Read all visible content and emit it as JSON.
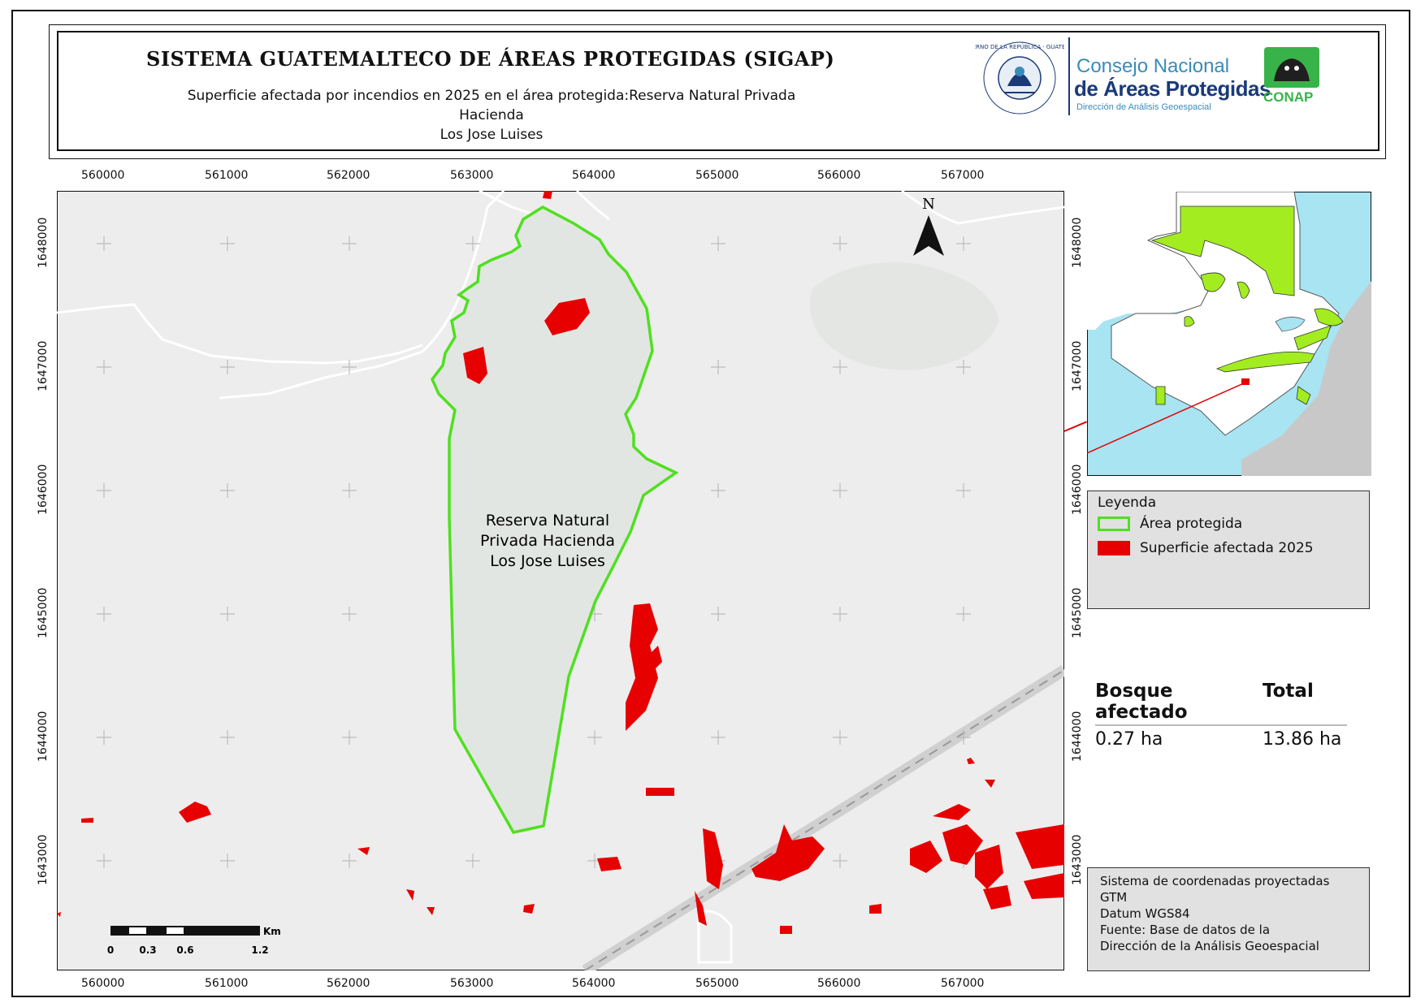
{
  "header": {
    "title": "SISTEMA GUATEMALTECO DE ÁREAS PROTEGIDAS  (SIGAP)",
    "subtitle_line1": "Superficie afectada por incendios en 2025 en el área protegida:Reserva Natural Privada Hacienda",
    "subtitle_line2": "Los Jose Luises",
    "gov_seal_text": "GOBIERNO DE LA REPÚBLICA · GUATEMALA",
    "conap_line1": "Consejo Nacional",
    "conap_line2": "de Áreas Protegidas",
    "conap_line3": "Dirección de Análisis Geoespacial",
    "conap_logo_label": "CONAP"
  },
  "map": {
    "protected_area_label_line1": "Reserva Natural",
    "protected_area_label_line2": "Privada Hacienda",
    "protected_area_label_line3": "Los Jose Luises",
    "north_label": "N",
    "x_ticks": [
      "560000",
      "561000",
      "562000",
      "563000",
      "564000",
      "565000",
      "566000",
      "567000"
    ],
    "y_ticks": [
      "1648000",
      "1647000",
      "1646000",
      "1645000",
      "1644000",
      "1643000"
    ],
    "scalebar": {
      "unit": "Km",
      "labels": [
        "0",
        "0.3",
        "0.6",
        "1.2"
      ]
    },
    "colors": {
      "background": "#ededed",
      "protected_area_outline": "#4fe020",
      "protected_area_fill": "#e2e6e2",
      "fire": "#e60000",
      "roads": "#ffffff"
    }
  },
  "inset": {
    "colors": {
      "water": "#a8e4f2",
      "land": "#ffffff",
      "neighbors": "#c8c8c8",
      "protected": "#a2ec20"
    }
  },
  "legend": {
    "title": "Leyenda",
    "items": [
      {
        "label": "Área protegida",
        "swatch": "outline",
        "color": "#4fe020"
      },
      {
        "label": "Superficie afectada 2025",
        "swatch": "fill",
        "color": "#e60000"
      }
    ]
  },
  "stats": {
    "col1_header": "Bosque afectado",
    "col2_header": "Total",
    "col1_value": "0.27 ha",
    "col2_value": "13.86 ha"
  },
  "info": {
    "line1": "Sistema de coordenadas proyectadas",
    "line2": "GTM",
    "line3": "Datum WGS84",
    "line4": "Fuente: Base de datos de la",
    "line5": "Dirección de la Análisis Geoespacial"
  }
}
